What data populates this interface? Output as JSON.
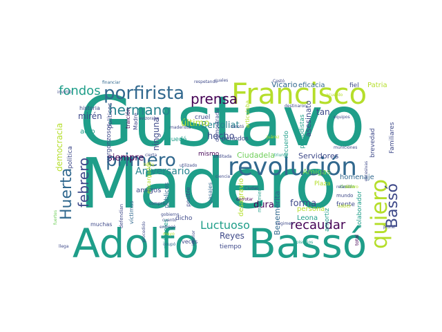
{
  "palette": {
    "teal": "#1f9e89",
    "teal_light": "#35b779",
    "green": "#6ece58",
    "lime": "#b5de2b",
    "blue": "#31688e",
    "indigo": "#3e4989",
    "purple": "#482878",
    "dark": "#440154",
    "mid": "#26828e"
  },
  "words": [
    {
      "t": "Gustavo"
    },
    {
      "t": "Madero"
    },
    {
      "t": "Adolfo"
    },
    {
      "t": "Bassó"
    },
    {
      "t": "Francisco"
    },
    {
      "t": "revolución"
    },
    {
      "t": "porfirista"
    },
    {
      "t": "hermano"
    },
    {
      "t": "primero"
    },
    {
      "t": "prensa"
    },
    {
      "t": "fondos"
    },
    {
      "t": "Huerta"
    },
    {
      "t": "febrero"
    },
    {
      "t": "quiero"
    },
    {
      "t": "Bassó"
    },
    {
      "t": "recaudar"
    },
    {
      "t": "Luctuoso"
    },
    {
      "t": "Aniversario"
    },
    {
      "t": "siempre"
    },
    {
      "t": "Bertoliat"
    },
    {
      "t": "hecho"
    },
    {
      "t": "último"
    },
    {
      "t": "democracia"
    },
    {
      "t": "mirén"
    },
    {
      "t": "historia"
    },
    {
      "t": "Vicario"
    },
    {
      "t": "eficacia"
    },
    {
      "t": "fiel"
    },
    {
      "t": "Patria"
    },
    {
      "t": "tan"
    },
    {
      "t": "asesinato"
    },
    {
      "t": "forma"
    },
    {
      "t": "dura"
    },
    {
      "t": "Reyes"
    },
    {
      "t": "Servidores"
    },
    {
      "t": "Amigas"
    },
    {
      "t": "Plaza"
    },
    {
      "t": "homenaje"
    },
    {
      "t": "persona"
    },
    {
      "t": "Leona"
    },
    {
      "t": "Familiares"
    },
    {
      "t": "brevedad"
    },
    {
      "t": "periodistas"
    },
    {
      "t": "recuerdo"
    },
    {
      "t": "Benemérita"
    },
    {
      "t": "Ciudadela"
    },
    {
      "t": "desagravio"
    },
    {
      "t": "amigos"
    },
    {
      "t": "víctimas"
    },
    {
      "t": "públicos"
    },
    {
      "t": "posible"
    },
    {
      "t": "pasajes"
    },
    {
      "t": "ninguna"
    },
    {
      "t": "demostrada"
    },
    {
      "t": "mismo"
    },
    {
      "t": "dicho"
    },
    {
      "t": "quedó"
    },
    {
      "t": "tiempo"
    },
    {
      "t": "veces"
    },
    {
      "t": "muchas"
    },
    {
      "t": "miércoles"
    },
    {
      "t": "acto"
    },
    {
      "t": "política"
    },
    {
      "t": "vergonzosos"
    },
    {
      "t": "políticos"
    },
    {
      "t": "traición"
    },
    {
      "t": "Madre"
    },
    {
      "t": "cruel"
    },
    {
      "t": "encargados"
    },
    {
      "t": "defendían"
    },
    {
      "t": "colaborador"
    },
    {
      "t": "amortiz"
    },
    {
      "t": "frente"
    },
    {
      "t": "mundo"
    },
    {
      "t": "saber"
    },
    {
      "t": "deuda"
    },
    {
      "t": "total"
    },
    {
      "t": "llega"
    },
    {
      "t": "ocupó"
    },
    {
      "t": "compra"
    },
    {
      "t": "cuales"
    },
    {
      "t": "financiar"
    },
    {
      "t": "invirtió"
    },
    {
      "t": "Costó"
    },
    {
      "t": "acuerdo"
    },
    {
      "t": "destinaron"
    },
    {
      "t": "municiones"
    },
    {
      "t": "equipos"
    },
    {
      "t": "Ciudad"
    },
    {
      "t": "ciencia"
    },
    {
      "t": "utilizado"
    },
    {
      "t": "períodos"
    },
    {
      "t": "triunfo"
    },
    {
      "t": "montó"
    },
    {
      "t": "auditada"
    },
    {
      "t": "derrotar"
    },
    {
      "t": "movimiento"
    },
    {
      "t": "relación"
    },
    {
      "t": "maderista"
    },
    {
      "t": "articulaba"
    },
    {
      "t": "Juárez"
    },
    {
      "t": "avizoraba"
    },
    {
      "t": "respetando"
    },
    {
      "t": "gobierno"
    },
    {
      "t": "cierta"
    },
    {
      "t": "entregó"
    },
    {
      "t": "cuanto"
    },
    {
      "t": "tenía"
    },
    {
      "t": "episodios"
    },
    {
      "t": "régimen"
    },
    {
      "t": "mayo"
    },
    {
      "t": "interior"
    },
    {
      "t": "procedido"
    },
    {
      "t": "fuertes"
    },
    {
      "t": "dinero"
    },
    {
      "t": "plural"
    },
    {
      "t": "excesivas"
    }
  ]
}
